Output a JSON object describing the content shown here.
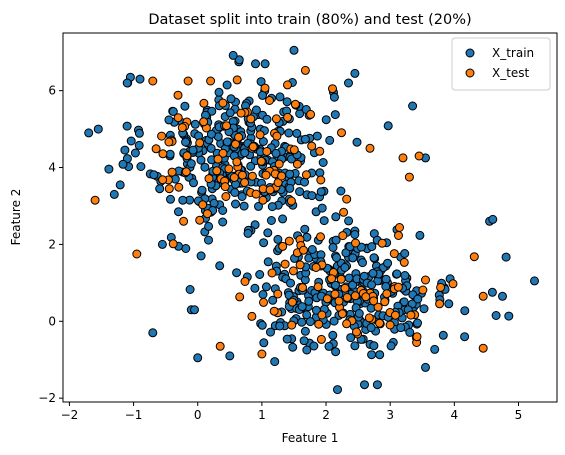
{
  "chart_data": {
    "type": "scatter",
    "title": "Dataset split into train (80%) and test (20%)",
    "xlabel": "Feature 1",
    "ylabel": "Feature 2",
    "xlim": [
      -2.1,
      5.6
    ],
    "ylim": [
      -2.1,
      7.5
    ],
    "xticks": [
      -2,
      -1,
      0,
      1,
      2,
      3,
      4,
      5
    ],
    "yticks": [
      -2,
      0,
      2,
      4,
      6
    ],
    "grid": false,
    "legend_position": "top-right",
    "marker_edge_color": "#000000",
    "series": [
      {
        "name": "X_train",
        "color": "#1f77b4",
        "clusters": [
          {
            "center": [
              0.65,
              4.35
            ],
            "spread": [
              0.72,
              0.95
            ],
            "count": 340
          },
          {
            "center": [
              2.35,
              0.85
            ],
            "spread": [
              0.85,
              0.8
            ],
            "count": 300
          }
        ],
        "points": [
          [
            -1.7,
            4.9
          ],
          [
            -1.55,
            5.0
          ],
          [
            -1.05,
            6.35
          ],
          [
            -1.1,
            6.2
          ],
          [
            -0.9,
            6.3
          ],
          [
            -1.3,
            3.3
          ],
          [
            -0.55,
            2.0
          ],
          [
            -0.3,
            1.95
          ],
          [
            -0.7,
            -0.3
          ],
          [
            -0.1,
            0.3
          ],
          [
            -0.05,
            0.3
          ],
          [
            0.5,
            -0.9
          ],
          [
            1.5,
            7.05
          ],
          [
            1.05,
            6.7
          ],
          [
            0.9,
            6.7
          ],
          [
            4.55,
            2.6
          ],
          [
            4.6,
            2.65
          ],
          [
            5.25,
            1.05
          ],
          [
            4.75,
            0.65
          ],
          [
            4.65,
            0.15
          ],
          [
            2.6,
            -1.65
          ],
          [
            2.8,
            -1.65
          ],
          [
            1.2,
            -1.05
          ],
          [
            3.55,
            -1.2
          ],
          [
            2.35,
            6.2
          ],
          [
            2.45,
            6.45
          ],
          [
            3.35,
            5.6
          ],
          [
            3.55,
            4.25
          ],
          [
            0.0,
            -0.95
          ],
          [
            -0.3,
            2.85
          ]
        ]
      },
      {
        "name": "X_test",
        "color": "#ff7f0e",
        "clusters": [
          {
            "center": [
              0.7,
              4.25
            ],
            "spread": [
              0.7,
              0.9
            ],
            "count": 90
          },
          {
            "center": [
              2.4,
              0.9
            ],
            "spread": [
              0.85,
              0.75
            ],
            "count": 80
          }
        ],
        "points": [
          [
            -1.6,
            3.15
          ],
          [
            -0.95,
            1.75
          ],
          [
            -0.7,
            6.25
          ],
          [
            -0.15,
            6.25
          ],
          [
            0.2,
            6.25
          ],
          [
            1.4,
            6.15
          ],
          [
            2.1,
            6.05
          ],
          [
            3.2,
            4.25
          ],
          [
            3.45,
            4.3
          ],
          [
            4.45,
            0.65
          ],
          [
            4.45,
            -0.7
          ],
          [
            1.0,
            -0.85
          ],
          [
            0.35,
            -0.65
          ],
          [
            3.3,
            3.75
          ]
        ]
      }
    ]
  }
}
